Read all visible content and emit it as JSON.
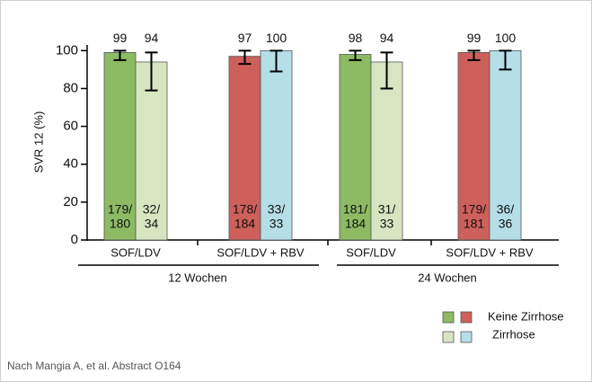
{
  "chart_data": {
    "type": "bar",
    "ylabel": "SVR 12 (%)",
    "categories": [
      "SOF/LDV",
      "SOF/LDV + RBV",
      "SOF/LDV",
      "SOF/LDV + RBV"
    ],
    "groups": [
      "12 Wochen",
      "24 Wochen"
    ],
    "series": [
      {
        "name": "Keine Zirrhose",
        "colors": [
          "#8cbb63",
          "#cd605a",
          "#8cbb63",
          "#cd605a"
        ],
        "values": [
          99,
          97,
          98,
          99
        ],
        "errors": [
          [
            4,
            1
          ],
          [
            4,
            3
          ],
          [
            3,
            2
          ],
          [
            4,
            1
          ]
        ],
        "n_labels": [
          [
            "179/",
            "180"
          ],
          [
            "178/",
            "184"
          ],
          [
            "181/",
            "184"
          ],
          [
            "179/",
            "181"
          ]
        ]
      },
      {
        "name": "Zirrhose",
        "colors": [
          "#d8e5c1",
          "#b5dee7",
          "#d8e5c1",
          "#b5dee7"
        ],
        "values": [
          94,
          100,
          94,
          100
        ],
        "errors": [
          [
            15,
            5
          ],
          [
            11,
            0
          ],
          [
            14,
            5
          ],
          [
            10,
            0
          ]
        ],
        "n_labels": [
          [
            "32/",
            "34"
          ],
          [
            "33/",
            "33"
          ],
          [
            "31/",
            "33"
          ],
          [
            "36/",
            "36"
          ]
        ]
      }
    ],
    "ylim": [
      0,
      103
    ],
    "yticks": [
      0,
      20,
      40,
      60,
      80,
      100
    ],
    "grid": false,
    "footnote": "Nach Mangia A, et al. Abstract O164"
  }
}
